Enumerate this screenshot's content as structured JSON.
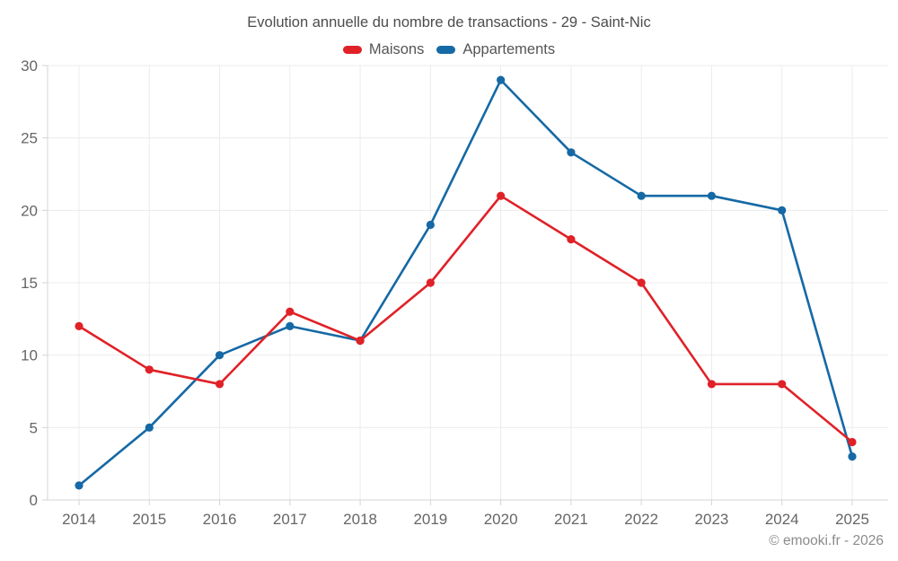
{
  "title": "Evolution annuelle du nombre de transactions - 29 - Saint-Nic",
  "legend": {
    "items": [
      {
        "label": "Maisons",
        "color": "#e02127"
      },
      {
        "label": "Appartements",
        "color": "#1569a5"
      }
    ]
  },
  "footer": {
    "copyright": "© emooki.fr - 2026"
  },
  "chart_data": {
    "type": "line",
    "title": "Evolution annuelle du nombre de transactions - 29 - Saint-Nic",
    "categories": [
      "2014",
      "2015",
      "2016",
      "2017",
      "2018",
      "2019",
      "2020",
      "2021",
      "2022",
      "2023",
      "2024",
      "2025"
    ],
    "series": [
      {
        "name": "Maisons",
        "color": "#e02127",
        "values": [
          12,
          9,
          8,
          13,
          11,
          15,
          21,
          18,
          15,
          8,
          8,
          4
        ]
      },
      {
        "name": "Appartements",
        "color": "#1569a5",
        "values": [
          1,
          5,
          10,
          12,
          11,
          19,
          29,
          24,
          21,
          21,
          20,
          3
        ]
      }
    ],
    "xlabel": "",
    "ylabel": "",
    "ylim": [
      0,
      30
    ],
    "yticks": [
      0,
      5,
      10,
      15,
      20,
      25,
      30
    ],
    "grid": true,
    "legend_position": "top",
    "colors": {
      "grid": "#ececec",
      "axis": "#d4d4d4",
      "tick_label": "#666666"
    }
  }
}
